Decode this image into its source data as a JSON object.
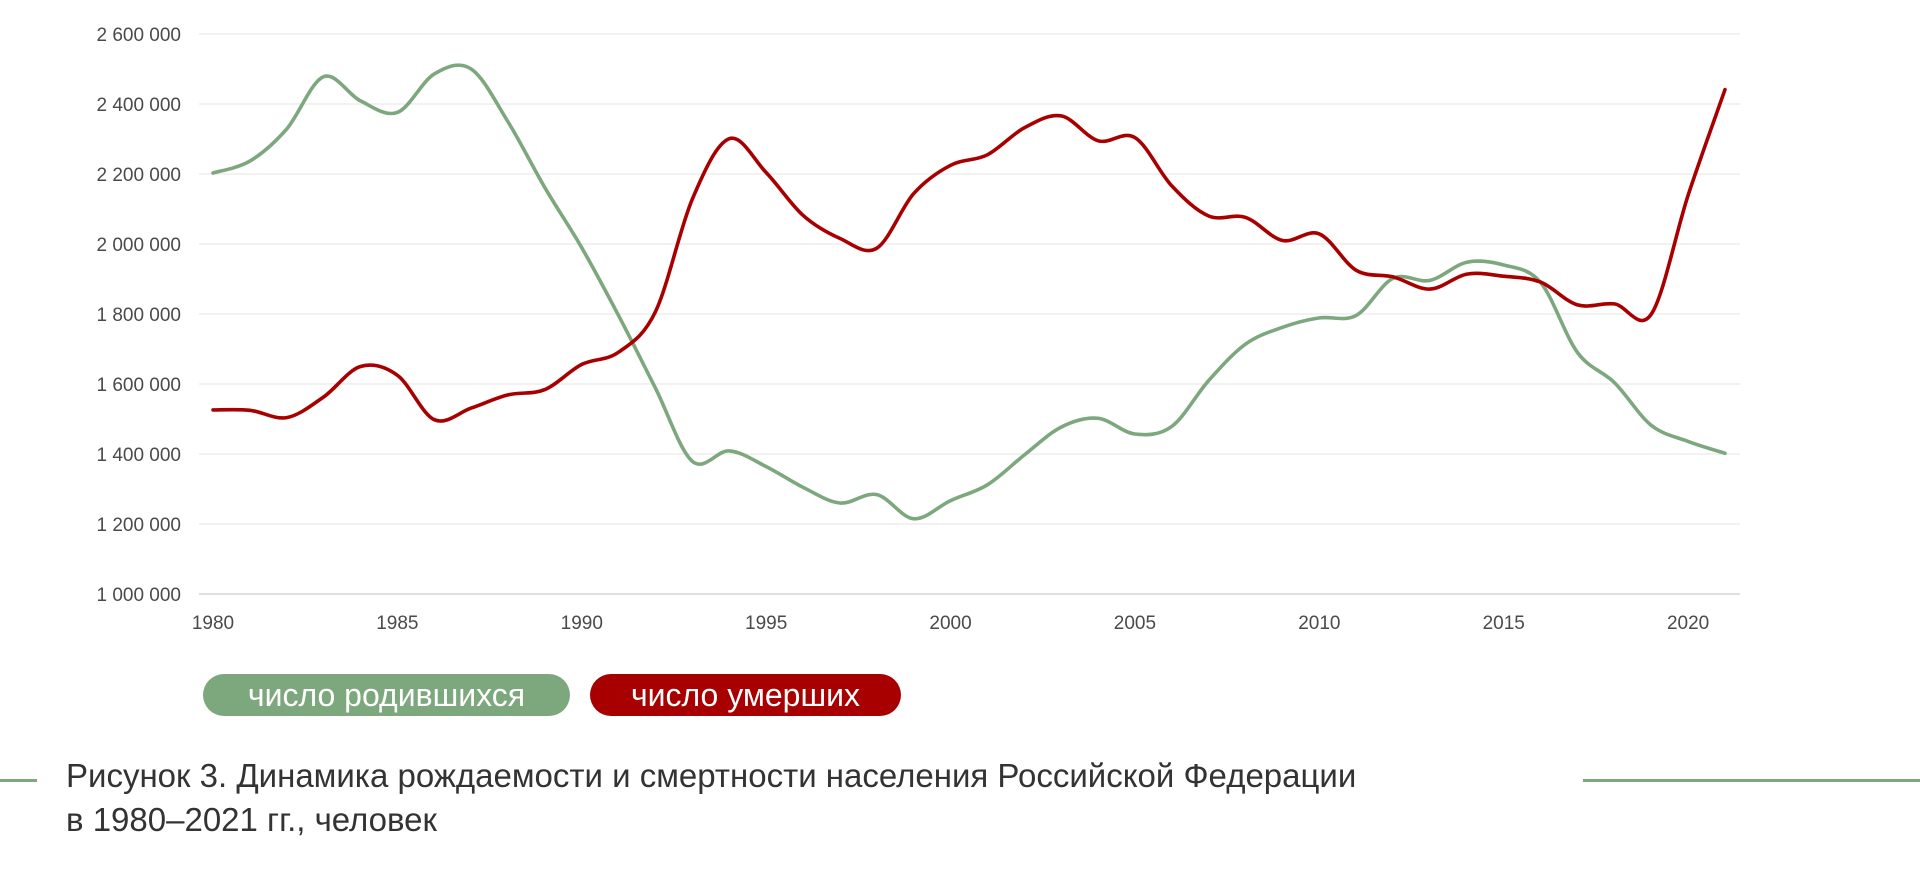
{
  "caption": {
    "line1": "Рисунок 3. Динамика рождаемости и смертности населения Российской Федерации",
    "line2": "в 1980–2021 гг., человек"
  },
  "colors": {
    "births": "#7da77d",
    "deaths": "#a80000",
    "grid": "#e6e6e6",
    "axis": "#bfbfbf",
    "rule": "#7da77d"
  },
  "chart_data": {
    "type": "line",
    "title": "",
    "xlabel": "",
    "ylabel": "",
    "xlim": [
      1980,
      2021
    ],
    "ylim": [
      1000000,
      2600000
    ],
    "x_ticks": [
      1980,
      1985,
      1990,
      1995,
      2000,
      2005,
      2010,
      2015,
      2020
    ],
    "x_tick_labels": [
      "1980",
      "1985",
      "1990",
      "1995",
      "2000",
      "2005",
      "2010",
      "2015",
      "2020"
    ],
    "y_ticks": [
      1000000,
      1200000,
      1400000,
      1600000,
      1800000,
      2000000,
      2200000,
      2400000,
      2600000
    ],
    "y_tick_labels": [
      "1 000 000",
      "1 200 000",
      "1 400 000",
      "1 600 000",
      "1 800 000",
      "2 000 000",
      "2 200 000",
      "2 400 000",
      "2 600 000"
    ],
    "grid": "horizontal",
    "legend_position": "bottom-left",
    "x": [
      1980,
      1981,
      1982,
      1983,
      1984,
      1985,
      1986,
      1987,
      1988,
      1989,
      1990,
      1991,
      1992,
      1993,
      1994,
      1995,
      1996,
      1997,
      1998,
      1999,
      2000,
      2001,
      2002,
      2003,
      2004,
      2005,
      2006,
      2007,
      2008,
      2009,
      2010,
      2011,
      2012,
      2013,
      2014,
      2015,
      2016,
      2017,
      2018,
      2019,
      2020,
      2021
    ],
    "series": [
      {
        "name": "число родившихся",
        "color": "#7da77d",
        "values": [
          2203000,
          2237000,
          2329000,
          2478000,
          2409000,
          2376000,
          2486000,
          2500000,
          2349000,
          2161000,
          1989000,
          1795000,
          1588000,
          1379000,
          1409000,
          1364000,
          1305000,
          1260000,
          1284000,
          1215000,
          1267000,
          1312000,
          1397000,
          1477000,
          1502000,
          1457000,
          1479000,
          1610000,
          1714000,
          1762000,
          1789000,
          1796000,
          1902000,
          1896000,
          1948000,
          1940000,
          1890000,
          1690000,
          1604000,
          1482000,
          1436000,
          1402000
        ]
      },
      {
        "name": "число умерших",
        "color": "#a80000",
        "values": [
          1526000,
          1525000,
          1504000,
          1563000,
          1650000,
          1625000,
          1498000,
          1531000,
          1569000,
          1584000,
          1656000,
          1691000,
          1807000,
          2129000,
          2301000,
          2204000,
          2082000,
          2016000,
          1988000,
          2144000,
          2225000,
          2255000,
          2332000,
          2366000,
          2295000,
          2304000,
          2166000,
          2080000,
          2076000,
          2010000,
          2029000,
          1925000,
          1906000,
          1871000,
          1914000,
          1908000,
          1891000,
          1826000,
          1829000,
          1799000,
          2139000,
          2441000
        ]
      }
    ]
  }
}
